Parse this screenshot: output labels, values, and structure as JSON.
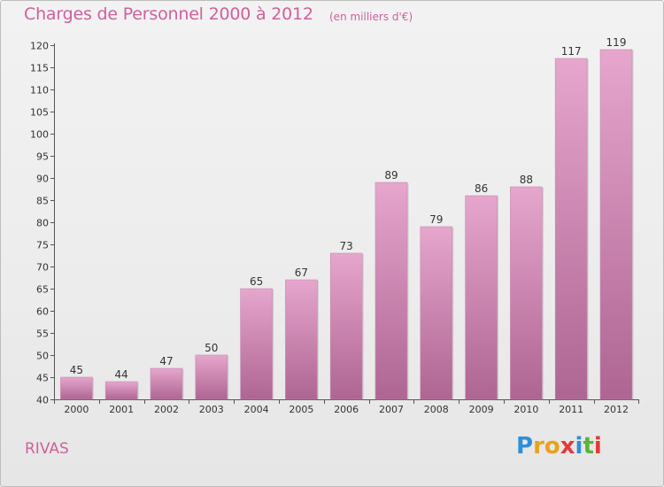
{
  "header": {
    "title": "Charges de Personnel 2000 à 2012",
    "subtitle": "(en milliers d'€)"
  },
  "footer": {
    "commune": "RIVAS",
    "brand_letters": [
      "P",
      "r",
      "o",
      "x",
      "i",
      "t",
      "i"
    ],
    "brand_colors": [
      "#2f8fd6",
      "#e8a21a",
      "#e8a21a",
      "#e53a3a",
      "#2f8fd6",
      "#5bb33a",
      "#e53a3a"
    ]
  },
  "colors": {
    "bar_top": "#e6a6cd",
    "bar_bottom": "#ae6592",
    "accent": "#d0609c"
  },
  "chart_data": {
    "type": "bar",
    "categories": [
      "2000",
      "2001",
      "2002",
      "2003",
      "2004",
      "2005",
      "2006",
      "2007",
      "2008",
      "2009",
      "2010",
      "2011",
      "2012"
    ],
    "values": [
      45,
      44,
      47,
      50,
      65,
      67,
      73,
      89,
      79,
      86,
      88,
      117,
      119
    ],
    "value_labels": [
      "45",
      "44",
      "47",
      "50",
      "65",
      "67",
      "73",
      "89",
      "79",
      "86",
      "88",
      "117",
      "119"
    ],
    "yticks": [
      "40",
      "45",
      "50",
      "55",
      "60",
      "65",
      "70",
      "75",
      "80",
      "85",
      "90",
      "95",
      "100",
      "105",
      "110",
      "115",
      "120"
    ],
    "ylim": [
      40,
      120
    ],
    "grid": false
  }
}
